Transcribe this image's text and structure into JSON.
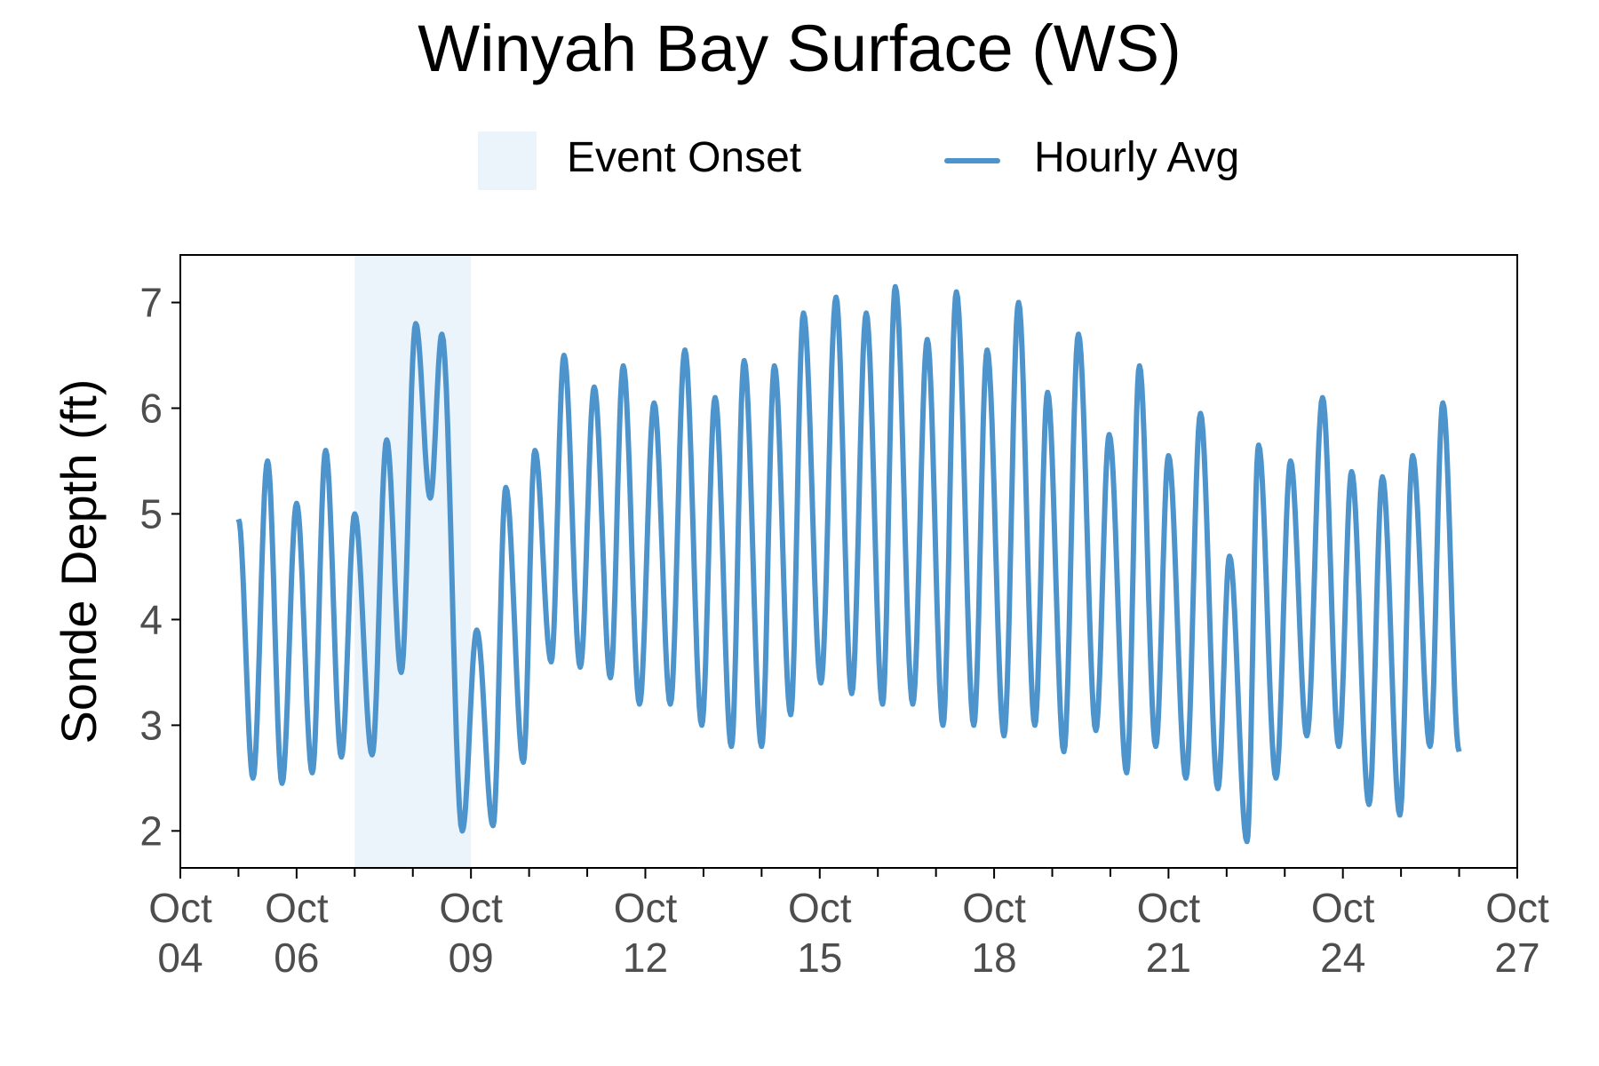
{
  "chart_data": {
    "type": "line",
    "title": "Winyah Bay Surface (WS)",
    "ylabel": "Sonde Depth (ft)",
    "xlabel": "",
    "x_unit": "date (October)",
    "xlim": [
      "Oct 04",
      "Oct 27"
    ],
    "ylim": [
      1.65,
      7.45
    ],
    "y_ticks": [
      2,
      3,
      4,
      5,
      6,
      7
    ],
    "x_ticks": [
      {
        "day": 4,
        "label1": "Oct",
        "label2": "04"
      },
      {
        "day": 6,
        "label1": "Oct",
        "label2": "06"
      },
      {
        "day": 9,
        "label1": "Oct",
        "label2": "09"
      },
      {
        "day": 12,
        "label1": "Oct",
        "label2": "12"
      },
      {
        "day": 15,
        "label1": "Oct",
        "label2": "15"
      },
      {
        "day": 18,
        "label1": "Oct",
        "label2": "18"
      },
      {
        "day": 21,
        "label1": "Oct",
        "label2": "21"
      },
      {
        "day": 24,
        "label1": "Oct",
        "label2": "24"
      },
      {
        "day": 27,
        "label1": "Oct",
        "label2": "27"
      }
    ],
    "minor_tick_days": [
      5,
      7,
      8,
      10,
      11,
      13,
      14,
      16,
      17,
      19,
      20,
      22,
      23,
      25,
      26
    ],
    "grid": false,
    "legend_position": "top",
    "legend": {
      "event_label": "Event Onset",
      "series_label": "Hourly Avg"
    },
    "event_onset": {
      "start_day": 7.0,
      "end_day": 9.0
    },
    "series": [
      {
        "name": "Hourly Avg",
        "extrema": [
          [
            5.0,
            4.95
          ],
          [
            5.25,
            2.5
          ],
          [
            5.5,
            5.5
          ],
          [
            5.75,
            2.45
          ],
          [
            6.0,
            5.1
          ],
          [
            6.27,
            2.55
          ],
          [
            6.5,
            5.6
          ],
          [
            6.77,
            2.7
          ],
          [
            7.0,
            5.0
          ],
          [
            7.3,
            2.72
          ],
          [
            7.55,
            5.7
          ],
          [
            7.8,
            3.5
          ],
          [
            8.05,
            6.8
          ],
          [
            8.3,
            5.15
          ],
          [
            8.5,
            6.7
          ],
          [
            8.85,
            2.0
          ],
          [
            9.1,
            3.9
          ],
          [
            9.38,
            2.05
          ],
          [
            9.6,
            5.25
          ],
          [
            9.9,
            2.65
          ],
          [
            10.1,
            5.6
          ],
          [
            10.38,
            3.6
          ],
          [
            10.6,
            6.5
          ],
          [
            10.88,
            3.55
          ],
          [
            11.12,
            6.2
          ],
          [
            11.4,
            3.45
          ],
          [
            11.62,
            6.4
          ],
          [
            11.9,
            3.2
          ],
          [
            12.15,
            6.05
          ],
          [
            12.43,
            3.2
          ],
          [
            12.68,
            6.55
          ],
          [
            12.97,
            3.0
          ],
          [
            13.2,
            6.1
          ],
          [
            13.48,
            2.8
          ],
          [
            13.7,
            6.45
          ],
          [
            14.0,
            2.8
          ],
          [
            14.22,
            6.4
          ],
          [
            14.5,
            3.1
          ],
          [
            14.72,
            6.9
          ],
          [
            15.02,
            3.4
          ],
          [
            15.28,
            7.05
          ],
          [
            15.55,
            3.3
          ],
          [
            15.8,
            6.9
          ],
          [
            16.08,
            3.2
          ],
          [
            16.3,
            7.15
          ],
          [
            16.6,
            3.2
          ],
          [
            16.85,
            6.65
          ],
          [
            17.12,
            3.0
          ],
          [
            17.35,
            7.1
          ],
          [
            17.65,
            3.0
          ],
          [
            17.88,
            6.55
          ],
          [
            18.17,
            2.9
          ],
          [
            18.42,
            7.0
          ],
          [
            18.7,
            3.0
          ],
          [
            18.92,
            6.15
          ],
          [
            19.2,
            2.75
          ],
          [
            19.45,
            6.7
          ],
          [
            19.75,
            2.95
          ],
          [
            19.98,
            5.75
          ],
          [
            20.28,
            2.55
          ],
          [
            20.5,
            6.4
          ],
          [
            20.78,
            2.8
          ],
          [
            21.0,
            5.55
          ],
          [
            21.3,
            2.5
          ],
          [
            21.55,
            5.95
          ],
          [
            21.85,
            2.4
          ],
          [
            22.05,
            4.6
          ],
          [
            22.35,
            1.9
          ],
          [
            22.55,
            5.65
          ],
          [
            22.85,
            2.5
          ],
          [
            23.1,
            5.5
          ],
          [
            23.38,
            2.9
          ],
          [
            23.65,
            6.1
          ],
          [
            23.93,
            2.8
          ],
          [
            24.15,
            5.4
          ],
          [
            24.45,
            2.25
          ],
          [
            24.68,
            5.35
          ],
          [
            24.98,
            2.15
          ],
          [
            25.2,
            5.55
          ],
          [
            25.5,
            2.8
          ],
          [
            25.72,
            6.05
          ],
          [
            26.0,
            2.75
          ]
        ]
      }
    ],
    "colors": {
      "line": "#4d94cc",
      "event_fill": "#ebf3fb",
      "axis": "#000000",
      "tick_label": "#4d4d4d"
    }
  }
}
